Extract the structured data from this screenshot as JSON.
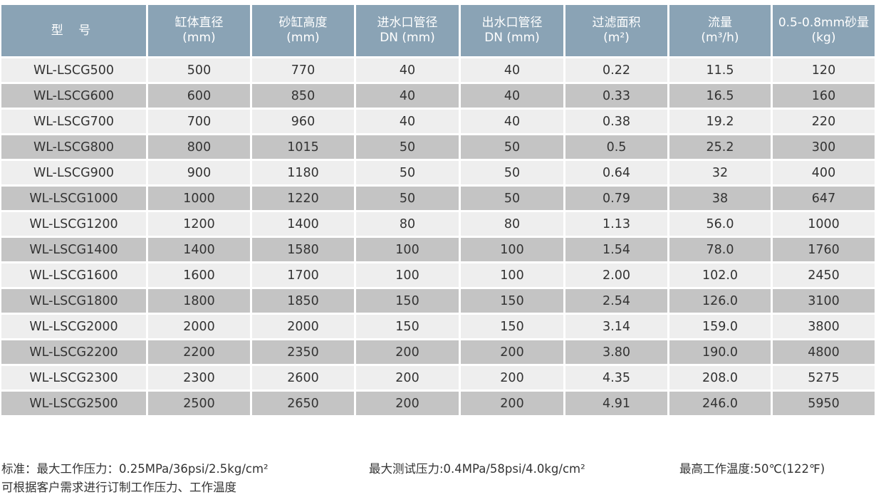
{
  "table": {
    "headers": [
      {
        "line1": "型 号",
        "line2": ""
      },
      {
        "line1": "缸体直径",
        "line2": "(mm)"
      },
      {
        "line1": "砂缸高度",
        "line2": "(mm)"
      },
      {
        "line1": "进水口管径",
        "line2": "DN (mm)"
      },
      {
        "line1": "出水口管径",
        "line2": "DN (mm)"
      },
      {
        "line1": "过滤面积",
        "line2": "(m²)"
      },
      {
        "line1": "流量",
        "line2": "(m³/h)"
      },
      {
        "line1": "0.5-0.8mm砂量",
        "line2": "(kg)"
      }
    ],
    "rows": [
      [
        "WL-LSCG500",
        "500",
        "770",
        "40",
        "40",
        "0.22",
        "11.5",
        "120"
      ],
      [
        "WL-LSCG600",
        "600",
        "850",
        "40",
        "40",
        "0.33",
        "16.5",
        "160"
      ],
      [
        "WL-LSCG700",
        "700",
        "960",
        "40",
        "40",
        "0.38",
        "19.2",
        "220"
      ],
      [
        "WL-LSCG800",
        "800",
        "1015",
        "50",
        "50",
        "0.5",
        "25.2",
        "300"
      ],
      [
        "WL-LSCG900",
        "900",
        "1180",
        "50",
        "50",
        "0.64",
        "32",
        "400"
      ],
      [
        "WL-LSCG1000",
        "1000",
        "1220",
        "50",
        "50",
        "0.79",
        "38",
        "647"
      ],
      [
        "WL-LSCG1200",
        "1200",
        "1400",
        "80",
        "80",
        "1.13",
        "56.0",
        "1000"
      ],
      [
        "WL-LSCG1400",
        "1400",
        "1580",
        "100",
        "100",
        "1.54",
        "78.0",
        "1760"
      ],
      [
        "WL-LSCG1600",
        "1600",
        "1700",
        "100",
        "100",
        "2.00",
        "102.0",
        "2450"
      ],
      [
        "WL-LSCG1800",
        "1800",
        "1850",
        "150",
        "150",
        "2.54",
        "126.0",
        "3100"
      ],
      [
        "WL-LSCG2000",
        "2000",
        "2000",
        "150",
        "150",
        "3.14",
        "159.0",
        "3800"
      ],
      [
        "WL-LSCG2200",
        "2200",
        "2350",
        "200",
        "200",
        "3.80",
        "190.0",
        "4800"
      ],
      [
        "WL-LSCG2300",
        "2300",
        "2600",
        "200",
        "200",
        "4.35",
        "208.0",
        "5275"
      ],
      [
        "WL-LSCG2500",
        "2500",
        "2650",
        "200",
        "200",
        "4.91",
        "246.0",
        "5950"
      ]
    ]
  },
  "notes": {
    "standard_pressure": "标准：最大工作压力：0.25MPa/36psi/2.5kg/cm²",
    "test_pressure": "最大测试压力:0.4MPa/58psi/4.0kg/cm²",
    "max_temp": "最高工作温度:50℃(122℉)",
    "custom": "可根据客户需求进行订制工作压力、工作温度"
  },
  "colors": {
    "header_bg": "#8aa3b5",
    "row_light": "#eeeeee",
    "row_dark": "#c4c4c4"
  }
}
